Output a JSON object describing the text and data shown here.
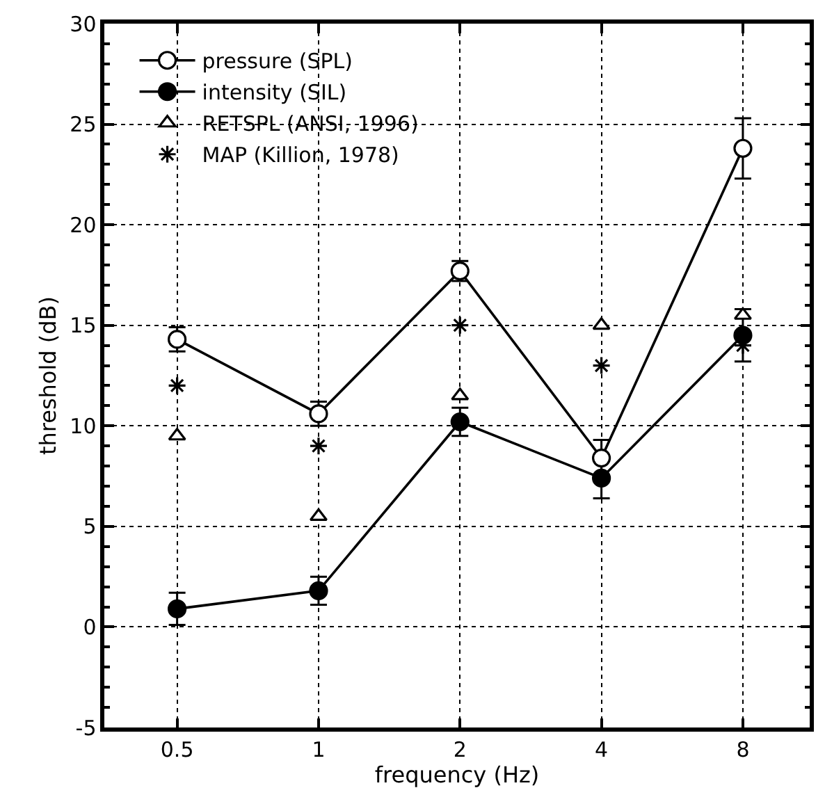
{
  "chart_data": {
    "type": "line",
    "xlabel": "frequency (Hz)",
    "ylabel": "threshold (dB)",
    "x": [
      0.5,
      1,
      2,
      4,
      8
    ],
    "log": "x",
    "xlim": [
      0.35,
      11.1
    ],
    "xticks": [
      0.5,
      1,
      2,
      4,
      8
    ],
    "ylim": [
      -5,
      30
    ],
    "yticks": [
      -5,
      0,
      5,
      10,
      15,
      20,
      25,
      30
    ],
    "grid": true,
    "legend": "top left",
    "series": [
      {
        "name": "pressure (SPL)",
        "color": "#000000",
        "marker": "circle",
        "line_style": "solid",
        "values": [
          14.3,
          10.6,
          17.7,
          8.4,
          23.8
        ],
        "errors": [
          0.6,
          0.6,
          0.5,
          0.9,
          1.5
        ]
      },
      {
        "name": "intensity (SIL)",
        "color": "#000000",
        "marker": "circle",
        "line_style": "solid",
        "values": [
          0.9,
          1.8,
          10.2,
          7.4,
          14.5
        ],
        "errors": [
          0.8,
          0.7,
          0.7,
          1.0,
          1.3
        ]
      },
      {
        "name": "RETSPL (ANSI, 1996)",
        "type": "scatter",
        "color": "#000000",
        "marker": "triangle",
        "values": [
          9.5,
          5.5,
          11.5,
          15.0,
          15.5
        ]
      },
      {
        "name": "MAP (Killion, 1978)",
        "type": "scatter",
        "color": "#000000",
        "marker": "cross",
        "values": [
          12,
          9,
          15,
          13,
          14
        ]
      }
    ]
  }
}
